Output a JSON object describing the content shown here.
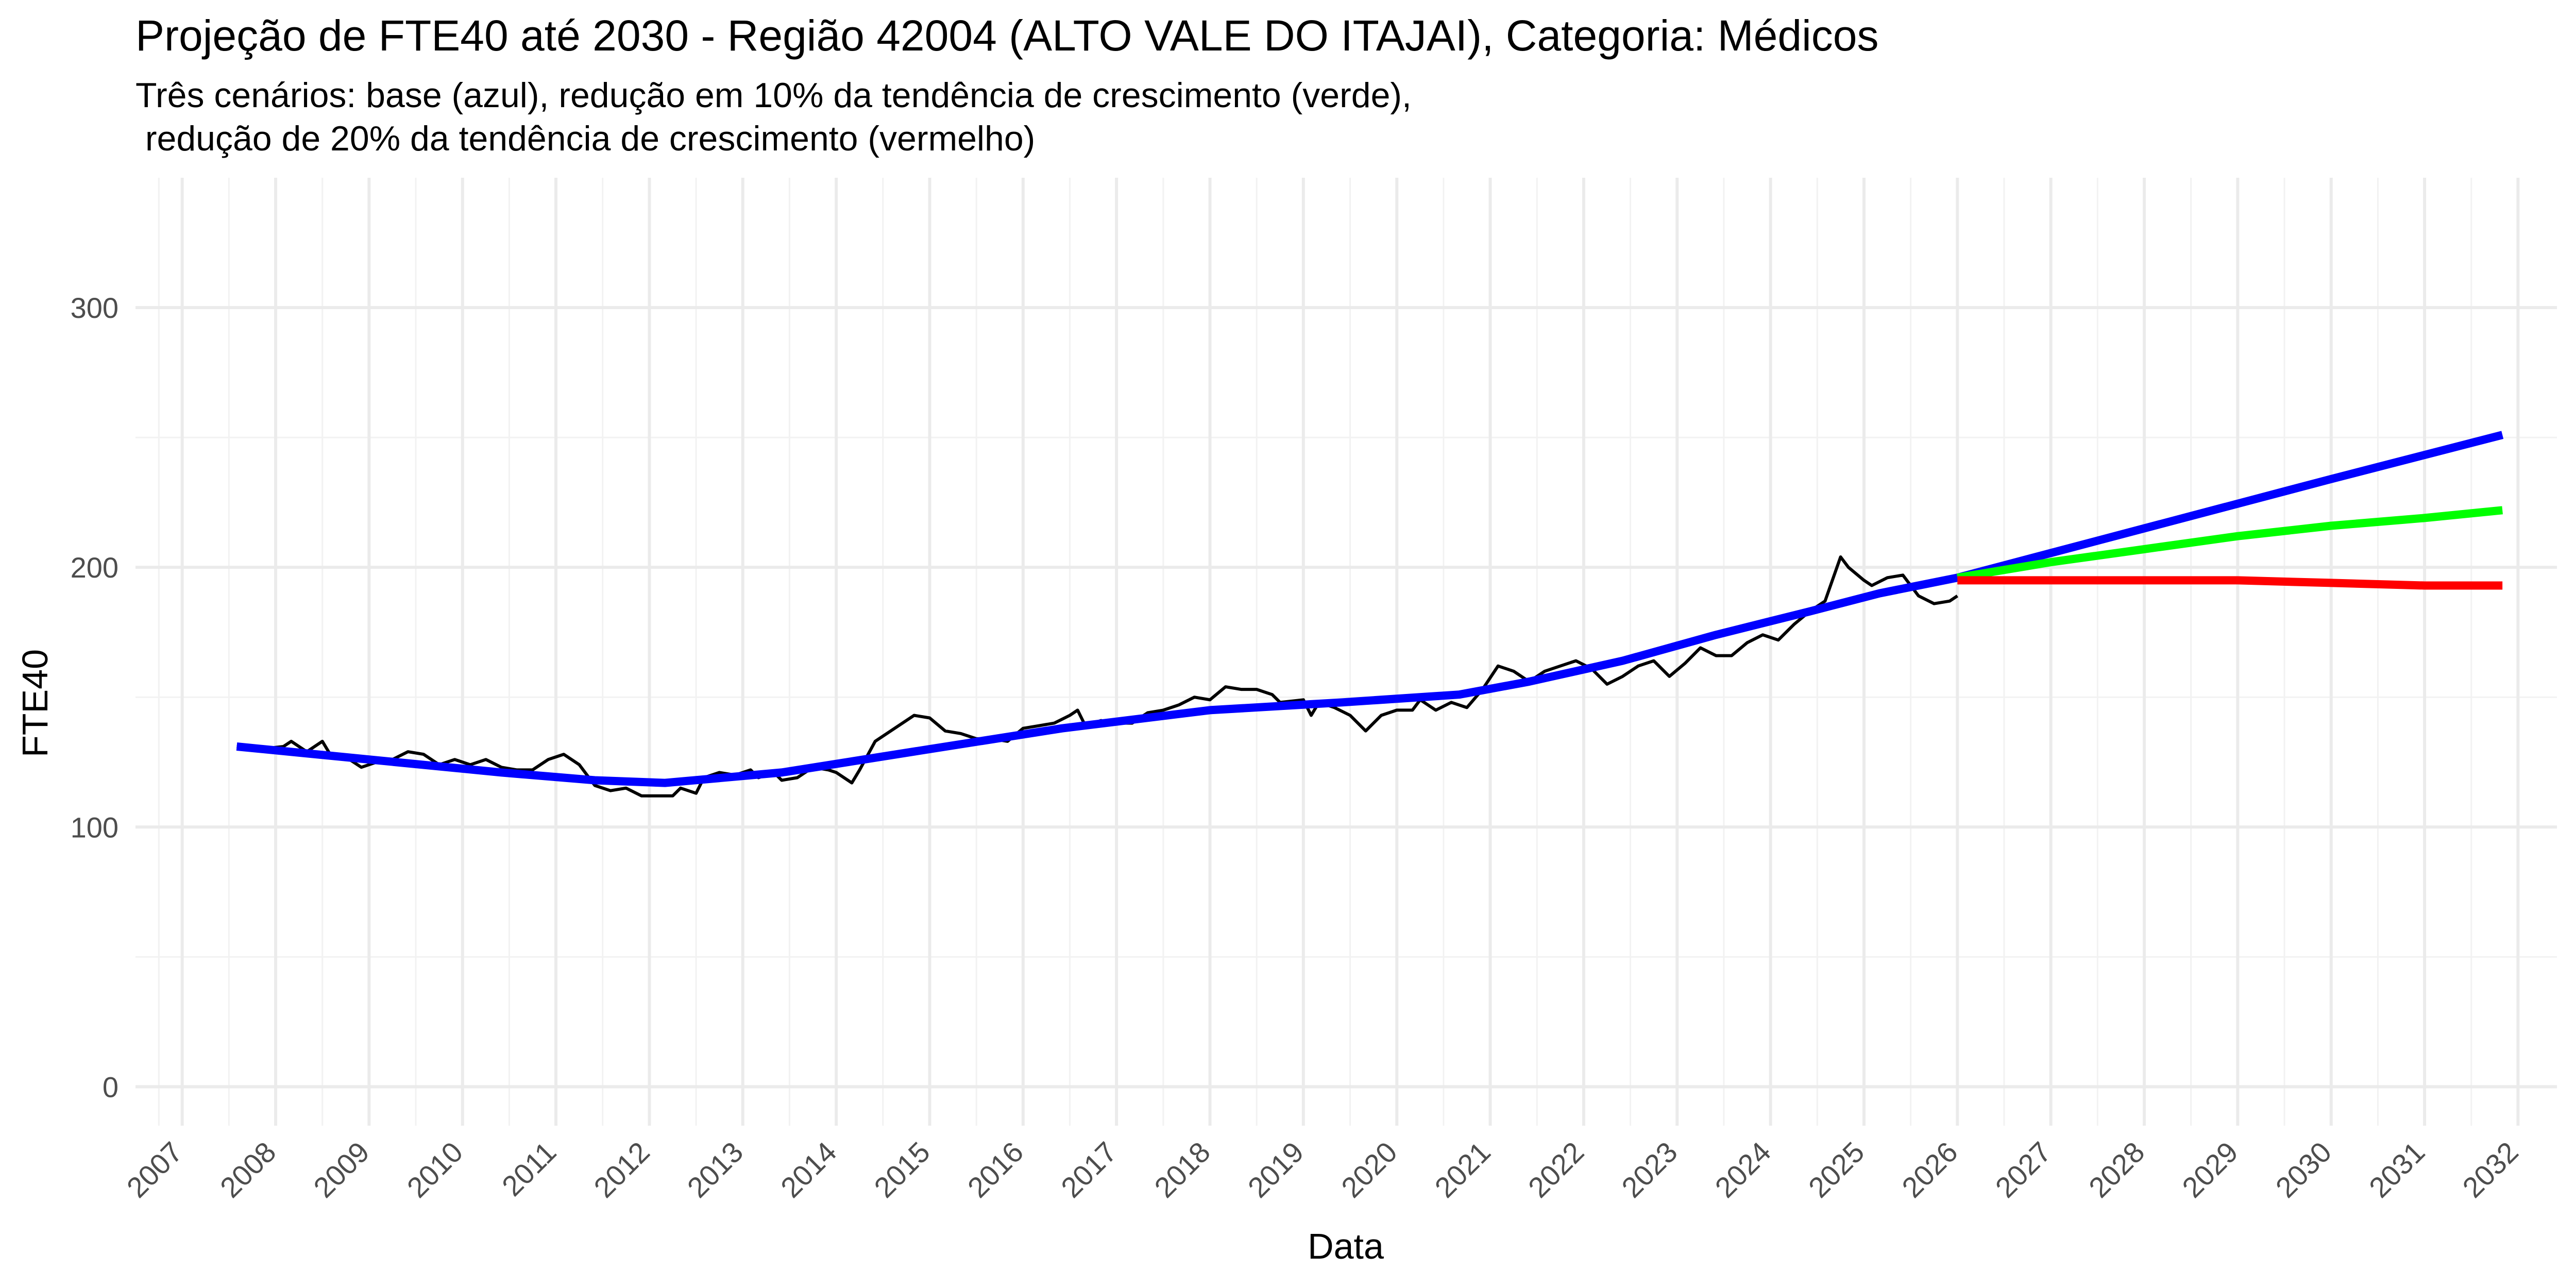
{
  "chart_data": {
    "type": "line",
    "title": "Projeção de FTE40 até 2030 - Região 42004 (ALTO VALE DO ITAJAI), Categoria: Médicos",
    "subtitle": [
      "Três cenários: base (azul), redução em 10% da tendência de crescimento (verde),",
      " redução de 20% da tendência de crescimento (vermelho)"
    ],
    "xlabel": "Data",
    "ylabel": "FTE40",
    "xlim": [
      "2006-07-01",
      "2032-06-01"
    ],
    "ylim": [
      -15,
      350
    ],
    "x_ticks": [
      "2007",
      "2008",
      "2009",
      "2010",
      "2011",
      "2012",
      "2013",
      "2014",
      "2015",
      "2016",
      "2017",
      "2018",
      "2019",
      "2020",
      "2021",
      "2022",
      "2023",
      "2024",
      "2025",
      "2026",
      "2027",
      "2028",
      "2029",
      "2030",
      "2031",
      "2032"
    ],
    "y_ticks": [
      0,
      100,
      200,
      300
    ],
    "grid": true,
    "legend": "none",
    "series": [
      {
        "color": "#000000",
        "stroke_width": 6,
        "points": [
          [
            "2007-08-01",
            131
          ],
          [
            "2007-11-01",
            130
          ],
          [
            "2008-02-01",
            131
          ],
          [
            "2008-03-01",
            133
          ],
          [
            "2008-05-01",
            129
          ],
          [
            "2008-07-01",
            133
          ],
          [
            "2008-08-01",
            128
          ],
          [
            "2008-10-01",
            127
          ],
          [
            "2008-12-01",
            123
          ],
          [
            "2009-02-01",
            125
          ],
          [
            "2009-04-01",
            126
          ],
          [
            "2009-06-01",
            129
          ],
          [
            "2009-08-01",
            128
          ],
          [
            "2009-10-01",
            124
          ],
          [
            "2009-12-01",
            126
          ],
          [
            "2010-02-01",
            124
          ],
          [
            "2010-04-01",
            126
          ],
          [
            "2010-06-01",
            123
          ],
          [
            "2010-08-01",
            122
          ],
          [
            "2010-10-01",
            122
          ],
          [
            "2010-12-01",
            126
          ],
          [
            "2011-02-01",
            128
          ],
          [
            "2011-04-01",
            124
          ],
          [
            "2011-06-01",
            116
          ],
          [
            "2011-08-01",
            114
          ],
          [
            "2011-10-01",
            115
          ],
          [
            "2011-12-01",
            112
          ],
          [
            "2012-02-01",
            112
          ],
          [
            "2012-04-01",
            112
          ],
          [
            "2012-05-01",
            115
          ],
          [
            "2012-07-01",
            113
          ],
          [
            "2012-08-01",
            119
          ],
          [
            "2012-10-01",
            121
          ],
          [
            "2012-12-01",
            120
          ],
          [
            "2013-02-01",
            122
          ],
          [
            "2013-03-01",
            119
          ],
          [
            "2013-05-01",
            121
          ],
          [
            "2013-06-01",
            118
          ],
          [
            "2013-08-01",
            119
          ],
          [
            "2013-10-01",
            123
          ],
          [
            "2013-12-01",
            122
          ],
          [
            "2014-01-01",
            121
          ],
          [
            "2014-03-01",
            117
          ],
          [
            "2014-04-01",
            122
          ],
          [
            "2014-06-01",
            133
          ],
          [
            "2014-08-01",
            137
          ],
          [
            "2014-10-01",
            141
          ],
          [
            "2014-11-01",
            143
          ],
          [
            "2015-01-01",
            142
          ],
          [
            "2015-03-01",
            137
          ],
          [
            "2015-05-01",
            136
          ],
          [
            "2015-07-01",
            134
          ],
          [
            "2015-09-01",
            134
          ],
          [
            "2015-11-01",
            133
          ],
          [
            "2016-01-01",
            138
          ],
          [
            "2016-03-01",
            139
          ],
          [
            "2016-05-01",
            140
          ],
          [
            "2016-07-01",
            143
          ],
          [
            "2016-08-01",
            145
          ],
          [
            "2016-09-01",
            139
          ],
          [
            "2016-11-01",
            141
          ],
          [
            "2017-01-01",
            140
          ],
          [
            "2017-03-01",
            140
          ],
          [
            "2017-05-01",
            144
          ],
          [
            "2017-07-01",
            145
          ],
          [
            "2017-09-01",
            147
          ],
          [
            "2017-11-01",
            150
          ],
          [
            "2018-01-01",
            149
          ],
          [
            "2018-03-01",
            154
          ],
          [
            "2018-05-01",
            153
          ],
          [
            "2018-07-01",
            153
          ],
          [
            "2018-09-01",
            151
          ],
          [
            "2018-10-01",
            148
          ],
          [
            "2019-01-01",
            149
          ],
          [
            "2019-02-01",
            143
          ],
          [
            "2019-03-01",
            148
          ],
          [
            "2019-05-01",
            146
          ],
          [
            "2019-07-01",
            143
          ],
          [
            "2019-09-01",
            137
          ],
          [
            "2019-11-01",
            143
          ],
          [
            "2020-01-01",
            145
          ],
          [
            "2020-03-01",
            145
          ],
          [
            "2020-04-01",
            149
          ],
          [
            "2020-06-01",
            145
          ],
          [
            "2020-08-01",
            148
          ],
          [
            "2020-10-01",
            146
          ],
          [
            "2020-12-01",
            153
          ],
          [
            "2021-02-01",
            162
          ],
          [
            "2021-04-01",
            160
          ],
          [
            "2021-06-01",
            156
          ],
          [
            "2021-08-01",
            160
          ],
          [
            "2021-10-01",
            162
          ],
          [
            "2021-12-01",
            164
          ],
          [
            "2022-02-01",
            161
          ],
          [
            "2022-04-01",
            155
          ],
          [
            "2022-06-01",
            158
          ],
          [
            "2022-08-01",
            162
          ],
          [
            "2022-10-01",
            164
          ],
          [
            "2022-12-01",
            158
          ],
          [
            "2023-02-01",
            163
          ],
          [
            "2023-04-01",
            169
          ],
          [
            "2023-06-01",
            166
          ],
          [
            "2023-08-01",
            166
          ],
          [
            "2023-10-01",
            171
          ],
          [
            "2023-12-01",
            174
          ],
          [
            "2024-02-01",
            172
          ],
          [
            "2024-04-01",
            178
          ],
          [
            "2024-06-01",
            183
          ],
          [
            "2024-08-01",
            187
          ],
          [
            "2024-10-01",
            204
          ],
          [
            "2024-11-01",
            200
          ],
          [
            "2025-01-01",
            195
          ],
          [
            "2025-02-01",
            193
          ],
          [
            "2025-04-01",
            196
          ],
          [
            "2025-06-01",
            197
          ],
          [
            "2025-08-01",
            189
          ],
          [
            "2025-10-01",
            186
          ],
          [
            "2025-12-01",
            187
          ],
          [
            "2026-01-01",
            189
          ]
        ]
      },
      {
        "color": "#0000ff",
        "stroke_width": 16,
        "points": [
          [
            "2007-08-01",
            131
          ],
          [
            "2009-01-01",
            126
          ],
          [
            "2010-06-01",
            121
          ],
          [
            "2011-06-01",
            118
          ],
          [
            "2012-03-01",
            117
          ],
          [
            "2013-06-01",
            121
          ],
          [
            "2015-01-01",
            130
          ],
          [
            "2016-06-01",
            138
          ],
          [
            "2018-01-01",
            145
          ],
          [
            "2019-06-01",
            148
          ],
          [
            "2020-09-01",
            151
          ],
          [
            "2021-06-01",
            156
          ],
          [
            "2022-06-01",
            164
          ],
          [
            "2023-06-01",
            174
          ],
          [
            "2024-06-01",
            183
          ],
          [
            "2025-03-01",
            190
          ],
          [
            "2026-01-01",
            196
          ],
          [
            "2028-01-01",
            215
          ],
          [
            "2030-01-01",
            234
          ],
          [
            "2031-11-01",
            251
          ]
        ]
      },
      {
        "color": "#00ff00",
        "stroke_width": 16,
        "points": [
          [
            "2026-01-01",
            196
          ],
          [
            "2027-01-01",
            202
          ],
          [
            "2028-01-01",
            207
          ],
          [
            "2029-01-01",
            212
          ],
          [
            "2030-01-01",
            216
          ],
          [
            "2031-01-01",
            219
          ],
          [
            "2031-11-01",
            222
          ]
        ]
      },
      {
        "color": "#ff0000",
        "stroke_width": 16,
        "points": [
          [
            "2026-01-01",
            195
          ],
          [
            "2027-01-01",
            195
          ],
          [
            "2028-01-01",
            195
          ],
          [
            "2029-01-01",
            195
          ],
          [
            "2030-01-01",
            194
          ],
          [
            "2031-01-01",
            193
          ],
          [
            "2031-11-01",
            193
          ]
        ]
      }
    ]
  }
}
